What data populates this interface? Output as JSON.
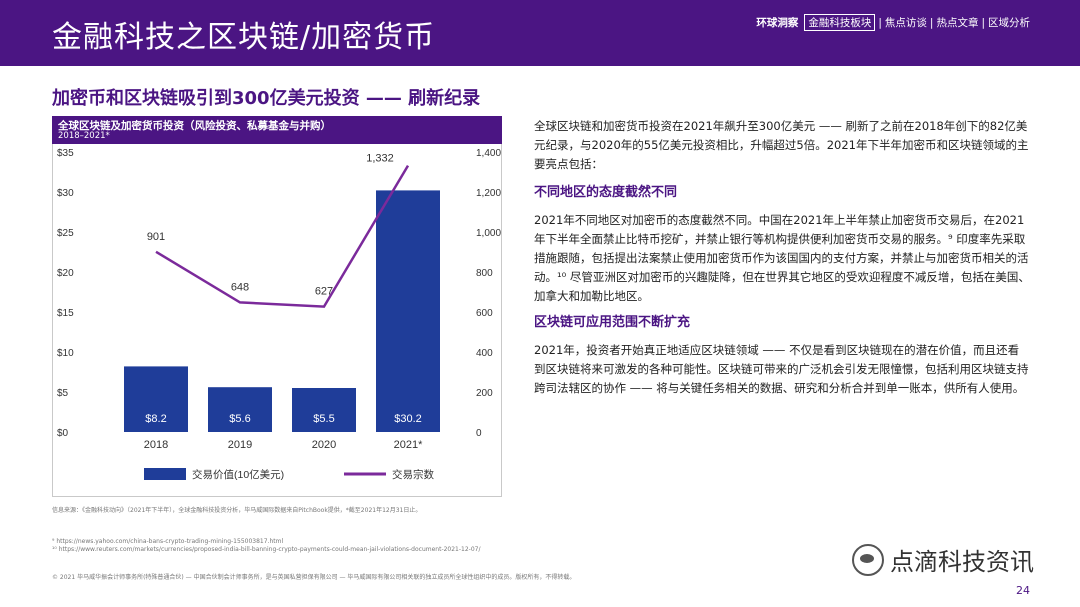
{
  "header": {
    "title": "金融科技之区块链/加密货币",
    "nav": {
      "brand": "环球洞察",
      "items": [
        "金融科技板块",
        "焦点访谈",
        "热点文章",
        "区域分析"
      ],
      "separator": "|"
    }
  },
  "subtitle": "加密币和区块链吸引到300亿美元投资 —— 刷新纪录",
  "chart_header": {
    "title": "全球区块链及加密货币投资（风险投资、私募基金与并购）",
    "period": "2018–2021*"
  },
  "chart_data": {
    "type": "bar",
    "categories": [
      "2018",
      "2019",
      "2020",
      "2021*"
    ],
    "series": [
      {
        "name": "交易价值(10亿美元)",
        "type": "bar",
        "values": [
          8.2,
          5.6,
          5.5,
          30.2
        ],
        "labels": [
          "$8.2",
          "$5.6",
          "$5.5",
          "$30.2"
        ],
        "color": "#1f3d99"
      },
      {
        "name": "交易宗数",
        "type": "line",
        "values": [
          901,
          648,
          627,
          1332
        ],
        "labels": [
          "901",
          "648",
          "627",
          "1,332"
        ],
        "color": "#7b2a9b"
      }
    ],
    "y_left": {
      "ticks": [
        "$0",
        "$5",
        "$10",
        "$15",
        "$20",
        "$25",
        "$30",
        "$35"
      ],
      "range": [
        0,
        35
      ]
    },
    "y_right": {
      "ticks": [
        "0",
        "200",
        "400",
        "600",
        "800",
        "1,000",
        "1,200",
        "1,400"
      ],
      "range": [
        0,
        1400
      ]
    },
    "legend_position": "bottom"
  },
  "chart_source": "信息来源：《金融科技动向》（2021年下半年），全球金融科技投资分析，毕马威国际数据来自PitchBook提供，*截至2021年12月31日止。",
  "footnotes": {
    "f9": "⁹ https://news.yahoo.com/china-bans-crypto-trading-mining-155003817.html",
    "f10": "¹⁰ https://www.reuters.com/markets/currencies/proposed-india-bill-banning-crypto-payments-could-mean-jail-violations-document-2021-12-07/",
    "copyright": "© 2021 毕马威华振会计师事务所(特殊普通合伙) — 中国合伙制会计师事务所，是与英国私营担保有限公司 — 毕马威国际有限公司相关联的独立成员所全球性组织中的成员。版权所有，不得转载。"
  },
  "content": {
    "intro": "全球区块链和加密货币投资在2021年飙升至300亿美元 —— 刷新了之前在2018年创下的82亿美元纪录，与2020年的55亿美元投资相比，升幅超过5倍。2021年下半年加密币和区块链领域的主要亮点包括：",
    "section1_title": "不同地区的态度截然不同",
    "section1_body": "2021年不同地区对加密币的态度截然不同。中国在2021年上半年禁止加密货币交易后，在2021年下半年全面禁止比特币挖矿，并禁止银行等机构提供便利加密货币交易的服务。⁹ 印度率先采取措施跟随，包括提出法案禁止使用加密货币作为该国国内的支付方案，并禁止与加密货币相关的活动。¹⁰ 尽管亚洲区对加密币的兴趣陡降，但在世界其它地区的受欢迎程度不减反增，包括在美国、加拿大和加勒比地区。",
    "section2_title": "区块链可应用范围不断扩充",
    "section2_body": "2021年，投资者开始真正地适应区块链领域 —— 不仅是看到区块链现在的潜在价值，而且还看到区块链将来可激发的各种可能性。区块链可带来的广泛机会引发无限憧憬，包括利用区块链支持跨司法辖区的协作 —— 将与关键任务相关的数据、研究和分析合并到单一账本，供所有人使用。"
  },
  "watermark": "点滴科技资讯",
  "page_number": "24"
}
